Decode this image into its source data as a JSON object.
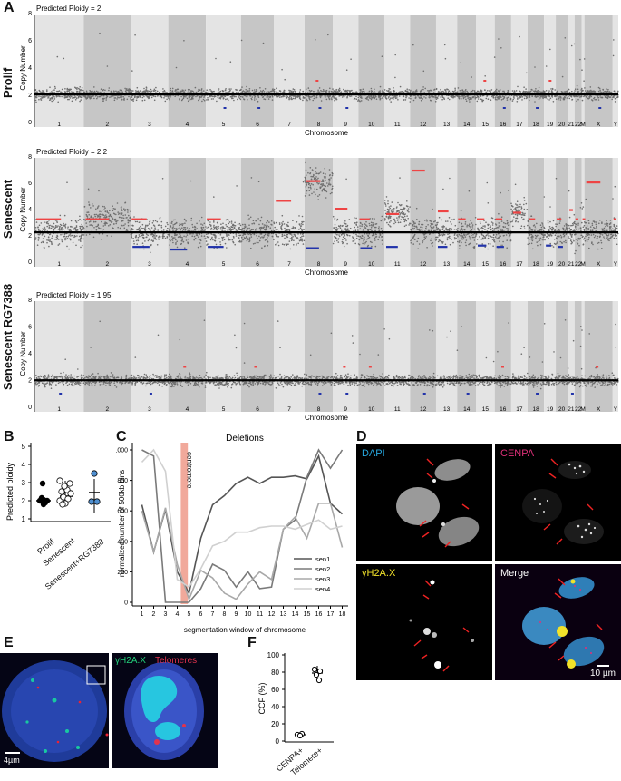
{
  "panel_letters": {
    "A": "A",
    "B": "B",
    "C": "C",
    "D": "D",
    "E": "E",
    "F": "F"
  },
  "panel_a": {
    "xlabel": "Chromosome",
    "ylabel": "Copy Number",
    "yticks": [
      "0",
      "2",
      "4",
      "6",
      "8"
    ],
    "chromosomes": [
      "1",
      "2",
      "3",
      "4",
      "5",
      "6",
      "7",
      "8",
      "9",
      "10",
      "11",
      "12",
      "13",
      "14",
      "15",
      "16",
      "17",
      "18",
      "19",
      "20",
      "21",
      "22",
      "M",
      "X",
      "Y"
    ],
    "rows": [
      {
        "label": "Prolif",
        "ploidy_text": "Predicted Ploidy = 2",
        "baseline": 2
      },
      {
        "label": "Senescent",
        "ploidy_text": "Predicted Ploidy = 2.2",
        "baseline": 2.2
      },
      {
        "label": "Senescent RG7388",
        "ploidy_text": "Predicted Ploidy = 1.95",
        "baseline": 1.95
      }
    ],
    "colors": {
      "dots": "#6e6e6e",
      "gain": "#ee4444",
      "loss": "#2233aa",
      "segment": "#000000"
    }
  },
  "panel_b": {
    "ylabel": "Predicted ploidy",
    "yticks": [
      "1",
      "2",
      "3",
      "4",
      "5"
    ],
    "categories": [
      "Prolif",
      "Senescent",
      "Senescent+RG7388"
    ]
  },
  "chart_data": {
    "type": "line",
    "title": "Deletions",
    "xlabel": "segmentation window of chromosome",
    "ylabel": "normalized number of 500kb bins",
    "x": [
      1,
      2,
      3,
      4,
      5,
      6,
      7,
      8,
      9,
      10,
      11,
      12,
      13,
      14,
      15,
      16,
      17,
      18
    ],
    "ylim": [
      0,
      1000
    ],
    "yticks": [
      0,
      200,
      400,
      600,
      800,
      1000
    ],
    "annotation": "centromere",
    "annotation_range": [
      4.3,
      4.9
    ],
    "legend_position": "bottom-right",
    "series": [
      {
        "name": "sen1",
        "color": "#555555",
        "values": [
          640,
          330,
          610,
          200,
          60,
          420,
          640,
          700,
          780,
          820,
          780,
          820,
          820,
          830,
          810,
          960,
          650,
          580
        ]
      },
      {
        "name": "sen2",
        "color": "#7a7a7a",
        "values": [
          1000,
          960,
          0,
          0,
          0,
          90,
          250,
          210,
          100,
          200,
          90,
          100,
          480,
          540,
          820,
          1000,
          880,
          1000
        ]
      },
      {
        "name": "sen3",
        "color": "#a8a8a8",
        "values": [
          600,
          330,
          620,
          250,
          20,
          210,
          160,
          60,
          20,
          120,
          200,
          150,
          480,
          560,
          420,
          650,
          650,
          360
        ]
      },
      {
        "name": "sen4",
        "color": "#d0d0d0",
        "values": [
          920,
          1000,
          860,
          150,
          100,
          220,
          370,
          400,
          460,
          460,
          490,
          500,
          500,
          480,
          510,
          540,
          480,
          500
        ]
      }
    ]
  },
  "panel_d": {
    "labels": {
      "dapi": "DAPI",
      "cenpa": "CENPA",
      "gamma": "γH2A.X",
      "merge": "Merge"
    },
    "scalebar": "10 µm",
    "colors": {
      "dapi": "#27a9e1",
      "cenpa": "#e0307a",
      "gamma": "#f2e22a",
      "merge": "#ffffff"
    }
  },
  "panel_e": {
    "label_green": "γH2A.X",
    "label_red": "Telomeres",
    "scalebar": "4µm"
  },
  "panel_f": {
    "ylabel": "CCF (%)",
    "yticks": [
      "0",
      "20",
      "40",
      "60",
      "80",
      "100"
    ],
    "categories": [
      "CENPA+",
      "Telomere+"
    ]
  }
}
